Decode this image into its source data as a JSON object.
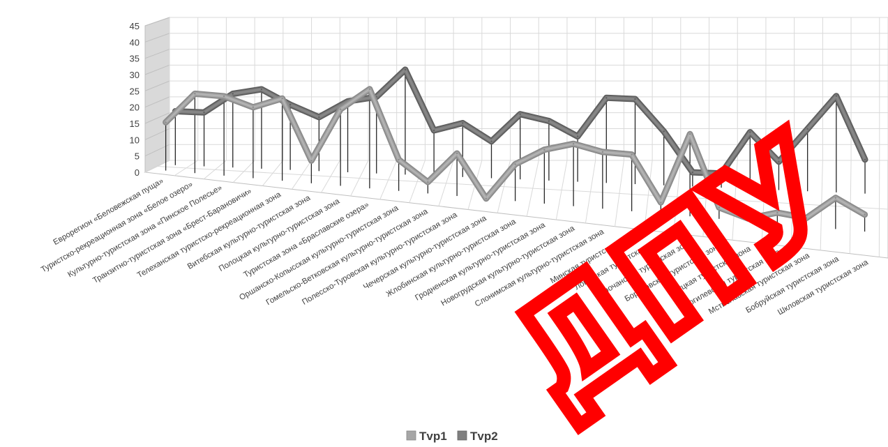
{
  "chart_data": {
    "type": "line",
    "title": "",
    "xlabel": "",
    "ylabel": "",
    "ylim": [
      0,
      45
    ],
    "yticks": [
      0,
      5,
      10,
      15,
      20,
      25,
      30,
      35,
      40,
      45
    ],
    "grid": true,
    "legend_position": "bottom",
    "categories": [
      "Еврорегион «Беловежская пуща»",
      "Туристско-рекреационная зона «Белое озеро»",
      "Культурно-туристская зона «Пинское Полесье»",
      "Транзитно-туристская зона «Брест-Барановичи»",
      "Телеханская туристско-рекреационная зона",
      "Витебская культурно-туристская зона",
      "Полоцкая культурно-туристская зона",
      "Туристская зона «Браславские озера»",
      "Оршанско-Копысская культурно-туристская зона",
      "Гомельско-Ветковская культурно-туристская зона",
      "Полесско-Туровская культурно-туристская зона",
      "Чечерская культурно-туристская зона",
      "Жлобинская культурно-туристская зона",
      "Гродненская культурно-туристская зона",
      "Новогрудская культурно-туристская зона",
      "Слонимская культурно-туристская зона",
      "Минская туристская зона",
      "Логойская туристская зона",
      "Нарочанская туристская зона",
      "Борисовская туристская зона",
      "Слуцкая туристская зона",
      "Могилевская туристская зона",
      "Мстиславская туристская зона",
      "Бобруйская туристская зона",
      "Шкловская туристская зона"
    ],
    "series": [
      {
        "name": "Tvp1",
        "color": "#a6a6a6",
        "values": [
          17,
          28,
          28,
          25,
          29,
          8,
          27,
          35,
          11,
          4,
          15,
          0,
          13,
          19,
          22,
          20,
          20,
          4,
          29,
          4,
          1,
          4,
          3,
          11,
          6
        ]
      },
      {
        "name": "Tvp2",
        "color": "#7f7f7f",
        "values": [
          19,
          19,
          26,
          28,
          23,
          19,
          25,
          27,
          37,
          16,
          19,
          13,
          23,
          21,
          16,
          30,
          30,
          19,
          5,
          5,
          20,
          10,
          22,
          34,
          12
        ]
      }
    ]
  },
  "watermark": {
    "text": "ДПУ",
    "color": "#ff0000"
  }
}
